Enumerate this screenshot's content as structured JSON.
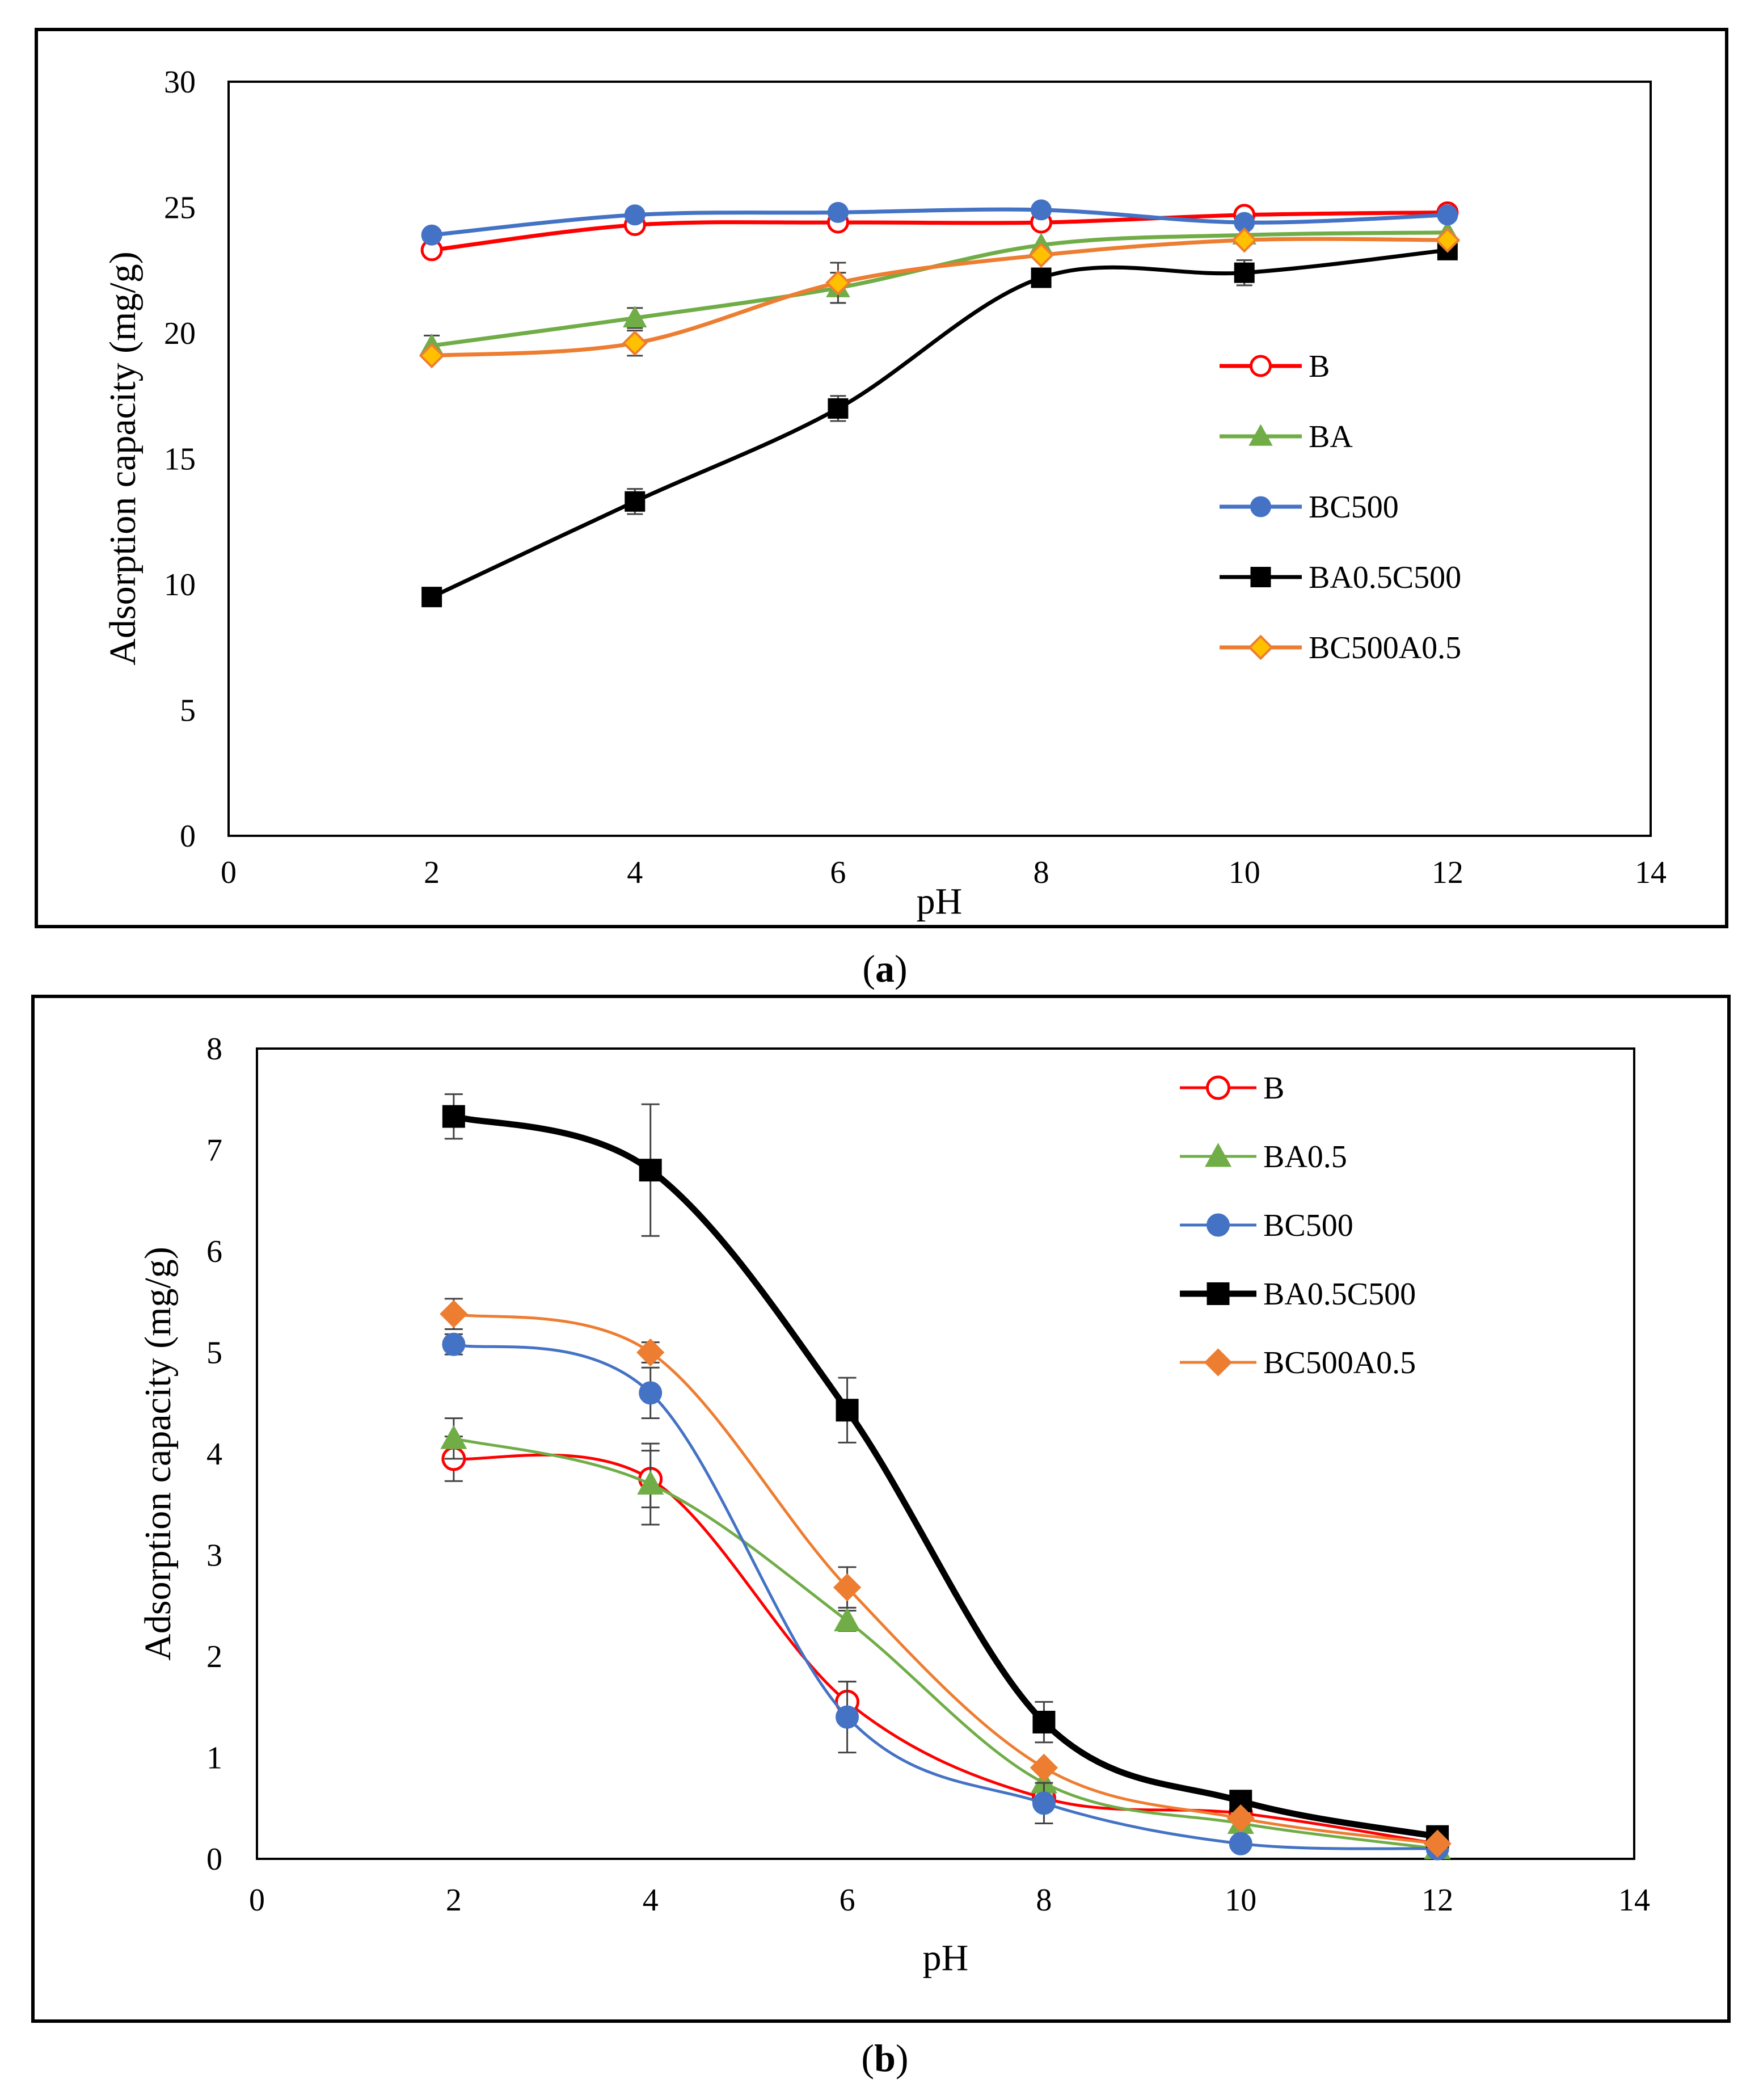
{
  "chart_data": [
    {
      "type": "line",
      "panel_label": "a",
      "xlabel": "pH",
      "ylabel": "Adsorption capacity (mg/g)",
      "xlim": [
        0,
        14
      ],
      "ylim": [
        0,
        30
      ],
      "xticks": [
        0,
        2,
        4,
        6,
        8,
        10,
        12,
        14
      ],
      "yticks": [
        0,
        5,
        10,
        15,
        20,
        25,
        30
      ],
      "legend_position": "right",
      "series": [
        {
          "name": "B",
          "color": "#FF0000",
          "marker": "open-circle",
          "marker_fill": "#FFFFFF",
          "line_width": "normal",
          "x": [
            2,
            4,
            6,
            8,
            10,
            12
          ],
          "values": [
            23.3,
            24.3,
            24.4,
            24.4,
            24.7,
            24.8
          ],
          "errors": [
            0,
            0,
            0,
            0,
            0,
            0
          ]
        },
        {
          "name": "BA",
          "color": "#70AD47",
          "marker": "triangle",
          "marker_fill": "#70AD47",
          "line_width": "normal",
          "x": [
            2,
            4,
            6,
            8,
            10,
            12
          ],
          "values": [
            19.5,
            20.6,
            21.8,
            23.5,
            23.9,
            24.0
          ],
          "errors": [
            0.4,
            0.4,
            0.6,
            0,
            0,
            0
          ]
        },
        {
          "name": "BC500",
          "color": "#4472C4",
          "marker": "circle",
          "marker_fill": "#4472C4",
          "line_width": "normal",
          "x": [
            2,
            4,
            6,
            8,
            10,
            12
          ],
          "values": [
            23.9,
            24.7,
            24.8,
            24.9,
            24.4,
            24.7
          ],
          "errors": [
            0,
            0,
            0,
            0,
            0,
            0
          ]
        },
        {
          "name": "BA0.5C500",
          "color": "#000000",
          "marker": "square",
          "marker_fill": "#000000",
          "line_width": "normal",
          "x": [
            2,
            4,
            6,
            8,
            10,
            12
          ],
          "values": [
            9.5,
            13.3,
            17.0,
            22.2,
            22.4,
            23.3
          ],
          "errors": [
            0,
            0.5,
            0.5,
            0,
            0.5,
            0
          ]
        },
        {
          "name": "BC500A0.5",
          "color": "#ED7D31",
          "marker": "diamond",
          "marker_fill": "#FFC000",
          "line_width": "normal",
          "x": [
            2,
            4,
            6,
            8,
            10,
            12
          ],
          "values": [
            19.1,
            19.6,
            22.0,
            23.1,
            23.7,
            23.7
          ],
          "errors": [
            0,
            0.5,
            0.8,
            0,
            0,
            0
          ]
        }
      ]
    },
    {
      "type": "line",
      "panel_label": "b",
      "xlabel": "pH",
      "ylabel": "Adsorption capacity  (mg/g)",
      "xlim": [
        0,
        14
      ],
      "ylim": [
        0,
        8
      ],
      "xticks": [
        0,
        2,
        4,
        6,
        8,
        10,
        12,
        14
      ],
      "yticks": [
        0,
        1,
        2,
        3,
        4,
        5,
        6,
        7,
        8
      ],
      "legend_position": "top-right",
      "series": [
        {
          "name": "B",
          "color": "#FF0000",
          "marker": "open-circle",
          "marker_fill": "#FFFFFF",
          "line_width": "normal",
          "x": [
            2,
            4,
            6,
            8,
            10,
            12
          ],
          "values": [
            3.95,
            3.75,
            1.55,
            0.6,
            0.45,
            0.15
          ],
          "errors": [
            0.22,
            0.28,
            0.2,
            0,
            0,
            0
          ]
        },
        {
          "name": "BA0.5",
          "color": "#70AD47",
          "marker": "triangle",
          "marker_fill": "#70AD47",
          "line_width": "normal",
          "x": [
            2,
            4,
            6,
            8,
            10,
            12
          ],
          "values": [
            4.15,
            3.7,
            2.35,
            0.75,
            0.35,
            0.1
          ],
          "errors": [
            0.2,
            0.4,
            0.1,
            0,
            0,
            0
          ]
        },
        {
          "name": "BC500",
          "color": "#4472C4",
          "marker": "circle",
          "marker_fill": "#4472C4",
          "line_width": "normal",
          "x": [
            2,
            4,
            6,
            8,
            10,
            12
          ],
          "values": [
            5.08,
            4.6,
            1.4,
            0.55,
            0.15,
            0.1
          ],
          "errors": [
            0.1,
            0.25,
            0.35,
            0.2,
            0,
            0
          ]
        },
        {
          "name": "BA0.5C500",
          "color": "#000000",
          "marker": "square",
          "marker_fill": "#000000",
          "line_width": "thick",
          "x": [
            2,
            4,
            6,
            8,
            10,
            12
          ],
          "values": [
            7.33,
            6.8,
            4.43,
            1.35,
            0.57,
            0.22
          ],
          "errors": [
            0.22,
            0.65,
            0.32,
            0.2,
            0,
            0
          ]
        },
        {
          "name": "BC500A0.5",
          "color": "#ED7D31",
          "marker": "diamond",
          "marker_fill": "#ED7D31",
          "line_width": "normal",
          "x": [
            2,
            4,
            6,
            8,
            10,
            12
          ],
          "values": [
            5.38,
            5.0,
            2.68,
            0.9,
            0.4,
            0.15
          ],
          "errors": [
            0.15,
            0.1,
            0.2,
            0,
            0,
            0
          ]
        }
      ]
    }
  ]
}
